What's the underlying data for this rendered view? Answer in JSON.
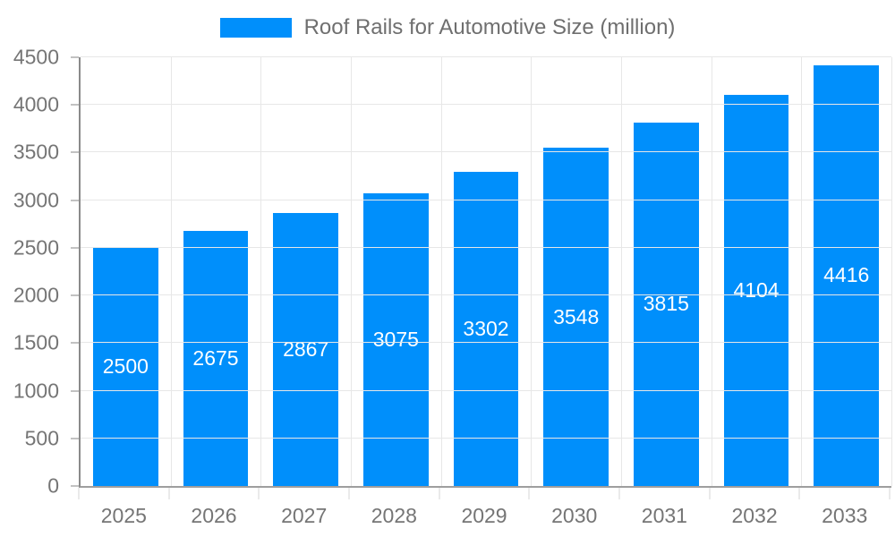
{
  "chart_data": {
    "type": "bar",
    "title": "Roof Rails for Automotive Size (million)",
    "legend": {
      "label": "Roof Rails for Automotive Size (million)",
      "position": "top"
    },
    "categories": [
      "2025",
      "2026",
      "2027",
      "2028",
      "2029",
      "2030",
      "2031",
      "2032",
      "2033"
    ],
    "series": [
      {
        "name": "Roof Rails for Automotive Size (million)",
        "values": [
          2500,
          2675,
          2867,
          3075,
          3302,
          3548,
          3815,
          4104,
          4416
        ]
      }
    ],
    "data_labels": [
      "2500",
      "2675",
      "2867",
      "3075",
      "3302",
      "3548",
      "3815",
      "4104",
      "4416"
    ],
    "xlabel": "",
    "ylabel": "",
    "ylim": [
      0,
      4500
    ],
    "ytick_interval": 500,
    "yticks": [
      0,
      500,
      1000,
      1500,
      2000,
      2500,
      3000,
      3500,
      4000,
      4500
    ],
    "ytick_labels": [
      "0",
      "500",
      "1000",
      "1500",
      "2000",
      "2500",
      "3000",
      "3500",
      "4000",
      "4500"
    ],
    "grid": true,
    "colors": {
      "bar": "#008FFB",
      "bar_value_text": "#ffffff",
      "axis_text": "#757575",
      "legend_text": "#6f6f6f",
      "gridline": "#e7e7e7",
      "axis_line": "#8a8a8a"
    }
  }
}
